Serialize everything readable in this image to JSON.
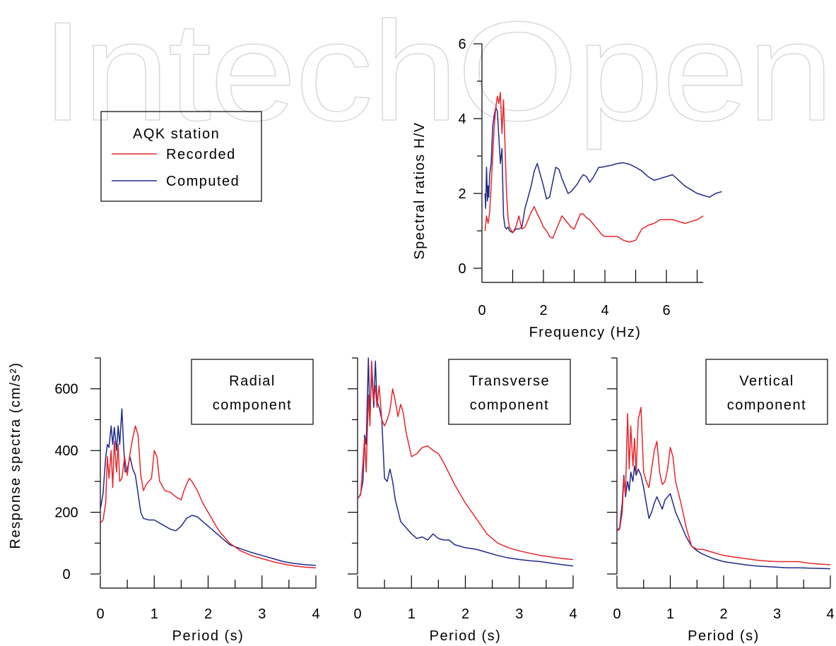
{
  "watermark": "IntechOpen",
  "colors": {
    "recorded": "#e8252b",
    "computed": "#1f2a8a"
  },
  "legend": {
    "title": "AQK station",
    "recorded_label": "Recorded",
    "computed_label": "Computed"
  },
  "hv": {
    "ylabel": "Spectral ratios H/V",
    "xlabel": "Frequency (Hz)",
    "xlim": [
      0,
      8
    ],
    "ylim": [
      0,
      6
    ],
    "xticks": [
      0,
      2,
      4,
      6
    ],
    "yticks": [
      0,
      2,
      4,
      6
    ],
    "xminor": [
      1,
      3,
      5,
      7
    ],
    "yminor": [
      1,
      3,
      5
    ]
  },
  "spectra": {
    "ylabel": "Response spectra (cm/s²)",
    "xlabel": "Period (s)",
    "xlim": [
      0,
      4
    ],
    "ylim": [
      0,
      700
    ],
    "xticks": [
      0,
      1,
      2,
      3,
      4
    ],
    "yticks": [
      0,
      200,
      400,
      600
    ],
    "xminor": [
      0.5,
      1.5,
      2.5,
      3.5
    ],
    "yminor": [
      100,
      300,
      500,
      700
    ],
    "panels": [
      {
        "label_line1": "Radial",
        "label_line2": "component"
      },
      {
        "label_line1": "Transverse",
        "label_line2": "component"
      },
      {
        "label_line1": "Vertical",
        "label_line2": "component"
      }
    ]
  },
  "chart_data": [
    {
      "type": "line",
      "title": "",
      "xlabel": "Frequency (Hz)",
      "ylabel": "Spectral ratios H/V",
      "xlim": [
        0,
        8
      ],
      "ylim": [
        0,
        6
      ],
      "series": [
        {
          "name": "Recorded",
          "color": "#e8252b",
          "x": [
            0.1,
            0.15,
            0.2,
            0.25,
            0.3,
            0.35,
            0.4,
            0.45,
            0.5,
            0.55,
            0.6,
            0.65,
            0.7,
            0.75,
            0.8,
            0.85,
            0.9,
            1.0,
            1.1,
            1.2,
            1.3,
            1.4,
            1.5,
            1.6,
            1.7,
            1.8,
            1.9,
            2.0,
            2.1,
            2.2,
            2.3,
            2.4,
            2.5,
            2.6,
            2.7,
            2.8,
            2.9,
            3.0,
            3.1,
            3.2,
            3.3,
            3.4,
            3.5,
            3.6,
            3.7,
            3.8,
            3.9,
            4.0,
            4.2,
            4.4,
            4.6,
            4.8,
            5.0,
            5.2,
            5.4,
            5.6,
            5.8,
            6.0,
            6.2,
            6.4,
            6.6,
            6.8,
            7.0,
            7.2
          ],
          "y": [
            1.0,
            1.4,
            1.2,
            1.5,
            2.2,
            3.0,
            3.8,
            4.3,
            4.6,
            4.4,
            4.7,
            3.6,
            4.5,
            3.3,
            2.0,
            1.3,
            1.1,
            0.95,
            1.1,
            1.4,
            1.05,
            1.1,
            1.3,
            1.5,
            1.65,
            1.45,
            1.3,
            1.1,
            1.0,
            0.85,
            0.8,
            1.0,
            1.2,
            1.4,
            1.3,
            1.2,
            1.1,
            1.05,
            1.25,
            1.45,
            1.45,
            1.35,
            1.3,
            1.2,
            1.1,
            1.0,
            0.9,
            0.85,
            0.85,
            0.85,
            0.75,
            0.7,
            0.75,
            1.05,
            1.15,
            1.2,
            1.3,
            1.3,
            1.3,
            1.25,
            1.2,
            1.25,
            1.3,
            1.4
          ]
        },
        {
          "name": "Computed",
          "color": "#1f2a8a",
          "x": [
            0.1,
            0.12,
            0.15,
            0.18,
            0.2,
            0.22,
            0.25,
            0.3,
            0.35,
            0.4,
            0.45,
            0.5,
            0.55,
            0.6,
            0.65,
            0.7,
            0.75,
            0.8,
            0.85,
            0.9,
            1.0,
            1.1,
            1.2,
            1.3,
            1.4,
            1.5,
            1.6,
            1.7,
            1.8,
            1.9,
            2.0,
            2.1,
            2.2,
            2.3,
            2.4,
            2.5,
            2.6,
            2.7,
            2.8,
            2.9,
            3.0,
            3.1,
            3.2,
            3.3,
            3.4,
            3.5,
            3.6,
            3.7,
            3.8,
            3.9,
            4.0,
            4.2,
            4.4,
            4.6,
            4.8,
            5.0,
            5.2,
            5.4,
            5.6,
            5.8,
            6.0,
            6.2,
            6.4,
            6.6,
            6.8,
            7.0,
            7.2,
            7.4,
            7.6,
            7.8
          ],
          "y": [
            2.0,
            1.6,
            2.7,
            1.8,
            2.2,
            1.9,
            2.5,
            2.8,
            3.8,
            4.1,
            4.3,
            4.2,
            3.5,
            2.8,
            3.2,
            1.4,
            1.1,
            1.05,
            1.1,
            1.0,
            0.95,
            1.05,
            1.05,
            1.1,
            1.6,
            1.9,
            2.2,
            2.6,
            2.8,
            2.5,
            2.2,
            1.85,
            1.9,
            2.3,
            2.7,
            2.65,
            2.4,
            2.2,
            2.0,
            2.05,
            2.15,
            2.25,
            2.4,
            2.5,
            2.45,
            2.3,
            2.4,
            2.55,
            2.7,
            2.7,
            2.72,
            2.75,
            2.8,
            2.82,
            2.78,
            2.7,
            2.6,
            2.45,
            2.35,
            2.4,
            2.45,
            2.5,
            2.35,
            2.2,
            2.1,
            2.0,
            1.95,
            1.9,
            2.0,
            2.05
          ]
        }
      ]
    },
    {
      "type": "line",
      "title": "Radial component",
      "xlabel": "Period (s)",
      "ylabel": "Response spectra (cm/s²)",
      "xlim": [
        0,
        4
      ],
      "ylim": [
        0,
        700
      ],
      "series": [
        {
          "name": "Recorded",
          "color": "#e8252b",
          "x": [
            0,
            0.05,
            0.1,
            0.13,
            0.16,
            0.2,
            0.23,
            0.26,
            0.3,
            0.33,
            0.36,
            0.4,
            0.45,
            0.5,
            0.55,
            0.6,
            0.65,
            0.7,
            0.75,
            0.8,
            0.85,
            0.9,
            0.95,
            1.0,
            1.05,
            1.1,
            1.2,
            1.3,
            1.4,
            1.5,
            1.55,
            1.6,
            1.65,
            1.7,
            1.8,
            1.9,
            2.0,
            2.2,
            2.4,
            2.6,
            2.8,
            3.0,
            3.2,
            3.4,
            3.6,
            3.8,
            4.0
          ],
          "y": [
            165,
            175,
            230,
            380,
            310,
            400,
            280,
            430,
            330,
            420,
            300,
            310,
            380,
            320,
            390,
            440,
            480,
            450,
            320,
            270,
            290,
            300,
            310,
            400,
            380,
            300,
            270,
            265,
            250,
            240,
            270,
            290,
            310,
            300,
            270,
            230,
            200,
            140,
            100,
            75,
            60,
            50,
            40,
            32,
            26,
            22,
            20
          ]
        },
        {
          "name": "Computed",
          "color": "#1f2a8a",
          "x": [
            0,
            0.05,
            0.1,
            0.13,
            0.16,
            0.2,
            0.23,
            0.26,
            0.3,
            0.33,
            0.36,
            0.4,
            0.43,
            0.46,
            0.5,
            0.55,
            0.6,
            0.65,
            0.7,
            0.75,
            0.8,
            0.9,
            1.0,
            1.1,
            1.2,
            1.3,
            1.4,
            1.5,
            1.6,
            1.7,
            1.8,
            1.9,
            2.0,
            2.2,
            2.4,
            2.6,
            2.8,
            3.0,
            3.2,
            3.4,
            3.6,
            3.8,
            4.0
          ],
          "y": [
            210,
            260,
            380,
            420,
            410,
            480,
            420,
            475,
            400,
            480,
            420,
            535,
            420,
            330,
            340,
            380,
            340,
            320,
            260,
            200,
            180,
            175,
            175,
            165,
            155,
            145,
            140,
            155,
            180,
            190,
            185,
            170,
            155,
            125,
            95,
            82,
            70,
            60,
            50,
            40,
            34,
            30,
            28
          ]
        }
      ]
    },
    {
      "type": "line",
      "title": "Transverse component",
      "xlabel": "Period (s)",
      "ylabel": "",
      "xlim": [
        0,
        4
      ],
      "ylim": [
        0,
        700
      ],
      "series": [
        {
          "name": "Recorded",
          "color": "#e8252b",
          "x": [
            0,
            0.03,
            0.06,
            0.1,
            0.13,
            0.16,
            0.2,
            0.23,
            0.26,
            0.3,
            0.33,
            0.36,
            0.4,
            0.45,
            0.5,
            0.55,
            0.6,
            0.65,
            0.7,
            0.75,
            0.8,
            0.85,
            0.9,
            1.0,
            1.1,
            1.2,
            1.3,
            1.4,
            1.5,
            1.6,
            1.8,
            2.0,
            2.2,
            2.4,
            2.6,
            2.8,
            3.0,
            3.2,
            3.4,
            3.6,
            3.8,
            4.0
          ],
          "y": [
            245,
            250,
            265,
            360,
            440,
            330,
            580,
            480,
            690,
            560,
            610,
            540,
            610,
            500,
            480,
            500,
            530,
            600,
            560,
            510,
            550,
            520,
            460,
            380,
            390,
            410,
            415,
            400,
            390,
            360,
            290,
            230,
            180,
            130,
            100,
            85,
            75,
            67,
            60,
            55,
            50,
            47
          ]
        },
        {
          "name": "Computed",
          "color": "#1f2a8a",
          "x": [
            0,
            0.05,
            0.1,
            0.13,
            0.16,
            0.2,
            0.23,
            0.26,
            0.3,
            0.33,
            0.36,
            0.4,
            0.45,
            0.5,
            0.55,
            0.6,
            0.65,
            0.7,
            0.8,
            0.9,
            1.0,
            1.1,
            1.2,
            1.3,
            1.4,
            1.5,
            1.6,
            1.7,
            1.8,
            2.0,
            2.2,
            2.4,
            2.6,
            2.8,
            3.0,
            3.2,
            3.4,
            3.6,
            3.8,
            4.0
          ],
          "y": [
            245,
            255,
            300,
            450,
            420,
            700,
            500,
            660,
            540,
            690,
            560,
            540,
            500,
            310,
            300,
            340,
            300,
            240,
            170,
            150,
            130,
            115,
            120,
            110,
            130,
            115,
            110,
            110,
            95,
            85,
            80,
            70,
            60,
            52,
            47,
            43,
            40,
            35,
            30,
            26
          ]
        }
      ]
    },
    {
      "type": "line",
      "title": "Vertical component",
      "xlabel": "Period (s)",
      "ylabel": "",
      "xlim": [
        0,
        4
      ],
      "ylim": [
        0,
        700
      ],
      "series": [
        {
          "name": "Recorded",
          "color": "#e8252b",
          "x": [
            0,
            0.05,
            0.1,
            0.13,
            0.16,
            0.2,
            0.23,
            0.26,
            0.3,
            0.33,
            0.36,
            0.4,
            0.45,
            0.5,
            0.55,
            0.6,
            0.65,
            0.7,
            0.75,
            0.8,
            0.85,
            0.9,
            0.95,
            1.0,
            1.05,
            1.1,
            1.2,
            1.3,
            1.4,
            1.5,
            1.6,
            1.8,
            2.0,
            2.2,
            2.4,
            2.6,
            2.8,
            3.0,
            3.2,
            3.4,
            3.6,
            3.8,
            4.0
          ],
          "y": [
            140,
            145,
            200,
            310,
            260,
            520,
            340,
            480,
            350,
            440,
            330,
            500,
            540,
            330,
            300,
            280,
            340,
            400,
            430,
            330,
            290,
            300,
            340,
            410,
            380,
            300,
            230,
            150,
            90,
            80,
            80,
            70,
            60,
            55,
            50,
            45,
            42,
            40,
            40,
            40,
            35,
            32,
            30
          ]
        },
        {
          "name": "Computed",
          "color": "#1f2a8a",
          "x": [
            0,
            0.05,
            0.1,
            0.13,
            0.16,
            0.2,
            0.23,
            0.26,
            0.3,
            0.33,
            0.36,
            0.4,
            0.45,
            0.5,
            0.55,
            0.6,
            0.65,
            0.7,
            0.75,
            0.8,
            0.85,
            0.9,
            0.95,
            1.0,
            1.05,
            1.1,
            1.2,
            1.3,
            1.4,
            1.5,
            1.6,
            1.8,
            2.0,
            2.2,
            2.4,
            2.6,
            2.8,
            3.0,
            3.2,
            3.4,
            3.6,
            3.8,
            4.0
          ],
          "y": [
            140,
            150,
            230,
            320,
            250,
            300,
            270,
            330,
            300,
            350,
            320,
            340,
            320,
            280,
            230,
            180,
            200,
            230,
            250,
            230,
            210,
            240,
            250,
            260,
            230,
            200,
            160,
            120,
            90,
            75,
            65,
            50,
            40,
            35,
            30,
            26,
            24,
            22,
            20,
            20,
            19,
            18,
            17
          ]
        }
      ]
    }
  ]
}
